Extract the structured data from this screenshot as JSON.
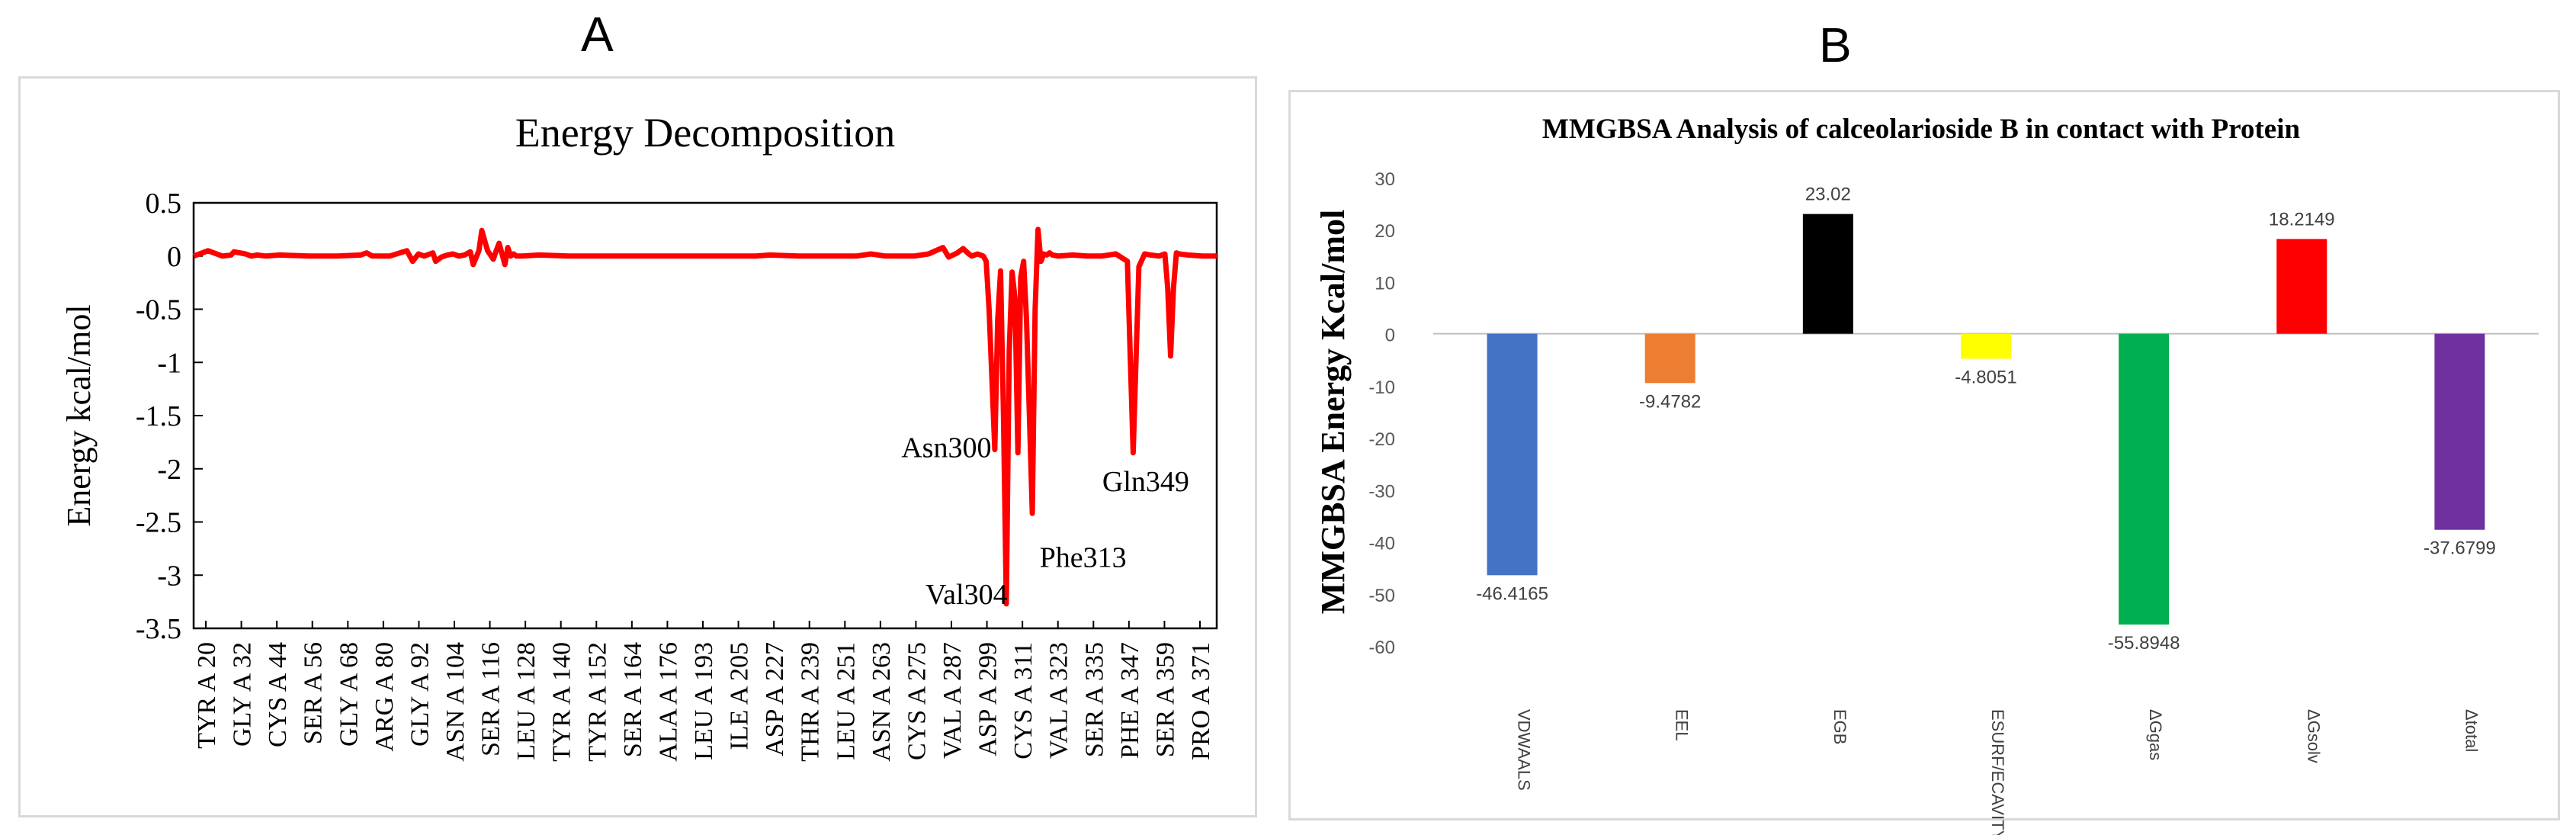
{
  "panels": {
    "a_letter": "A",
    "b_letter": "B"
  },
  "chart_data": [
    {
      "type": "line",
      "title": "Energy Decomposition",
      "xlabel": "",
      "ylabel": "Energy kcal/mol",
      "ylim": [
        -3.5,
        0.5
      ],
      "yticks": [
        0.5,
        0,
        -0.5,
        -1,
        -1.5,
        -2,
        -2.5,
        -3,
        -3.5
      ],
      "ytick_labels": [
        "0.5",
        "0",
        "-0.5",
        "-1",
        "-1.5",
        "-2",
        "-2.5",
        "-3",
        "-3.5"
      ],
      "xlim": [
        20,
        375
      ],
      "xtick_labels": [
        "TYR A 20",
        "GLY A 32",
        "CYS A 44",
        "SER A 56",
        "GLY A 68",
        "ARG A 80",
        "GLY A 92",
        "ASN A 104",
        "SER A 116",
        "LEU A 128",
        "TYR A 140",
        "TYR A 152",
        "SER A 164",
        "ALA A 176",
        "LEU A 193",
        "ILE A 205",
        "ASP A 227",
        "THR A 239",
        "LEU A 251",
        "ASN A 263",
        "CYS A 275",
        "VAL A 287",
        "ASP A 299",
        "CYS A 311",
        "VAL A 323",
        "SER A 335",
        "PHE A 347",
        "SER A 359",
        "PRO A 371"
      ],
      "color": "#ff0000",
      "series": [
        {
          "name": "Energy",
          "x": [
            20,
            25,
            27,
            28,
            30,
            33,
            34,
            38,
            40,
            42,
            45,
            50,
            60,
            70,
            78,
            80,
            82,
            88,
            94,
            96,
            98,
            100,
            103,
            104,
            106,
            108,
            110,
            112,
            114,
            116,
            117,
            119,
            120,
            122,
            124,
            125,
            126,
            128,
            129,
            130,
            131,
            132,
            134,
            140,
            150,
            160,
            170,
            180,
            190,
            200,
            210,
            215,
            220,
            230,
            240,
            250,
            255,
            260,
            265,
            270,
            275,
            280,
            282,
            285,
            287,
            289,
            290,
            292,
            294,
            295,
            296,
            298,
            299,
            300,
            301,
            302,
            303,
            304,
            305,
            306,
            307,
            308,
            309,
            310,
            311,
            312,
            313,
            314,
            315,
            316,
            317,
            318,
            320,
            325,
            330,
            335,
            340,
            344,
            346,
            348,
            350,
            352,
            355,
            357,
            358,
            359,
            360,
            361,
            362,
            365,
            370,
            375
          ],
          "y": [
            0,
            0.05,
            0.03,
            0.02,
            0,
            0.01,
            0.04,
            0.02,
            0,
            0.01,
            0,
            0.01,
            0,
            0,
            0.01,
            0.03,
            0,
            0,
            0.05,
            -0.05,
            0.02,
            0,
            0.03,
            -0.05,
            -0.01,
            0.01,
            0.02,
            0,
            0.01,
            0.04,
            -0.08,
            0.05,
            0.24,
            0.05,
            -0.03,
            0.05,
            0.12,
            -0.08,
            0.08,
            0,
            0.02,
            0,
            0,
            0.01,
            0,
            0,
            0,
            0,
            0,
            0,
            0,
            0,
            0.01,
            0,
            0,
            0,
            0.02,
            0,
            0,
            0,
            0.02,
            0.08,
            -0.01,
            0.03,
            0.07,
            0.02,
            0,
            0.02,
            0,
            -0.05,
            -0.5,
            -1.82,
            -0.6,
            -0.14,
            -1.5,
            -3.27,
            -0.9,
            -0.15,
            -0.4,
            -1.85,
            -0.2,
            -0.05,
            -0.6,
            -1.5,
            -2.42,
            -0.5,
            0.25,
            -0.05,
            0.02,
            0.01,
            0.03,
            0.01,
            0,
            0.01,
            0,
            0,
            0.02,
            -0.05,
            -1.85,
            -0.1,
            0.02,
            0.01,
            0,
            0.02,
            -0.3,
            -0.94,
            -0.3,
            0.03,
            0.02,
            0.01,
            0,
            0
          ]
        }
      ],
      "annotations": [
        {
          "text": "Asn300",
          "x": 300,
          "y": -1.82
        },
        {
          "text": "Val304",
          "x": 304,
          "y": -3.27
        },
        {
          "text": "Phe313",
          "x": 313,
          "y": -2.42
        },
        {
          "text": "Gln349",
          "x": 348,
          "y": -1.85
        }
      ]
    },
    {
      "type": "bar",
      "title": "MMGBSA Analysis of calceolarioside B in contact with Protein",
      "xlabel": "",
      "ylabel": "MMGBSA Energy Kcal/mol",
      "ylim": [
        -60,
        30
      ],
      "yticks": [
        30,
        20,
        10,
        0,
        -10,
        -20,
        -30,
        -40,
        -50,
        -60
      ],
      "ytick_labels": [
        "30",
        "20",
        "10",
        "0",
        "-10",
        "-20",
        "-30",
        "-40",
        "-50",
        "-60"
      ],
      "categories": [
        "VDWAALS",
        "EEL",
        "EGB",
        "ESURF/ECAVITY",
        "ΔGgas",
        "ΔGsolv",
        "Δtotal"
      ],
      "values": [
        -46.4165,
        -9.4782,
        23.02,
        -4.8051,
        -55.8948,
        18.2149,
        -37.6799
      ],
      "value_labels": [
        "-46.4165",
        "-9.4782",
        "23.02",
        "-4.8051",
        "-55.8948",
        "18.2149",
        "-37.6799"
      ],
      "colors": [
        "#4472c4",
        "#ed7d31",
        "#000000",
        "#ffff00",
        "#00b050",
        "#ff0000",
        "#7030a0"
      ]
    }
  ]
}
